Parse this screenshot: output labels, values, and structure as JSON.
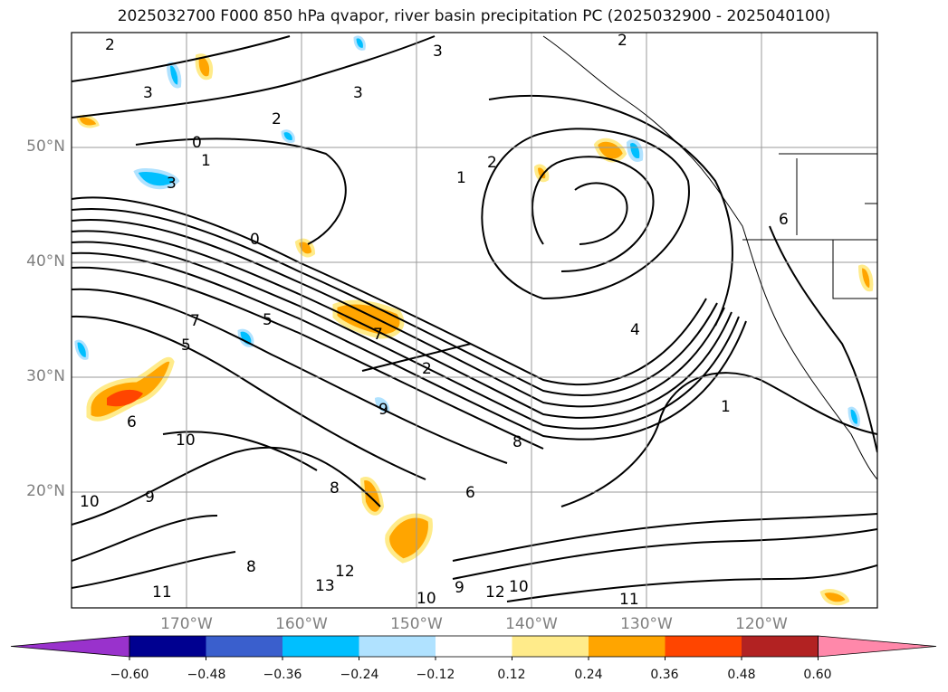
{
  "title": "2025032700 F000 850 hPa qvapor, river basin precipitation PC (2025032900 - 2025040100)",
  "lat_labels": [
    "50°N",
    "40°N",
    "30°N",
    "20°N"
  ],
  "lon_labels": [
    "170°W",
    "160°W",
    "150°W",
    "140°W",
    "130°W",
    "120°W"
  ],
  "colorbar": {
    "ticks": [
      "−0.60",
      "−0.48",
      "−0.36",
      "−0.24",
      "−0.12",
      "0.12",
      "0.24",
      "0.36",
      "0.48",
      "0.60"
    ],
    "colors": [
      "#9932cc",
      "#000090",
      "#3a5fcd",
      "#00bfff",
      "#b0e2ff",
      "#ffffff",
      "#ffeb8a",
      "#ffa500",
      "#ff4500",
      "#b22222",
      "#ff88aa"
    ]
  },
  "contour_labels": [
    "2",
    "2",
    "2",
    "2",
    "3",
    "3",
    "3",
    "3",
    "0",
    "0",
    "1",
    "1",
    "1",
    "2",
    "4",
    "5",
    "5",
    "6",
    "6",
    "6",
    "7",
    "7",
    "8",
    "8",
    "8",
    "9",
    "9",
    "9",
    "10",
    "10",
    "10",
    "10",
    "11",
    "11",
    "12",
    "12",
    "13"
  ]
}
